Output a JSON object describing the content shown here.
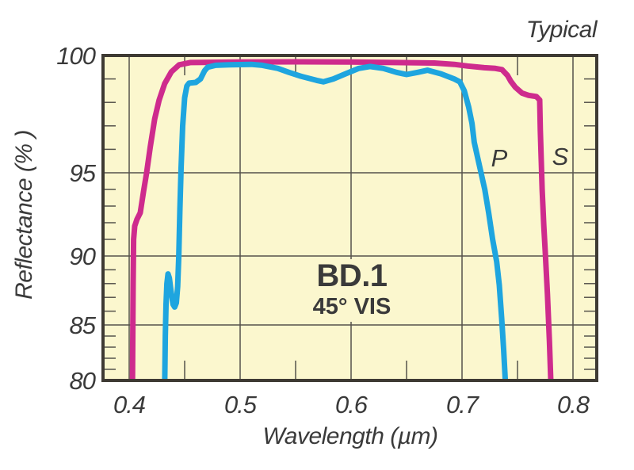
{
  "colors": {
    "page_background": "#ffffff",
    "plot_background": "#fbf7ce",
    "axis": "#3e3a33",
    "grid": "#55524b",
    "text": "#3a3a3a",
    "s_curve": "#ce2b8d",
    "p_curve": "#1ea5df"
  },
  "chart_data": {
    "type": "line",
    "title": "BD.1",
    "subtitle": "45° VIS",
    "corner_note": "Typical",
    "xlabel": "Wavelength (µm)",
    "ylabel": "Reflectance (% )",
    "xlim": [
      0.376,
      0.821
    ],
    "ylim": [
      80,
      100
    ],
    "y_scale": "nonlinear, expanded toward 100%",
    "grid": true,
    "x_tick_values": [
      0.4,
      0.5,
      0.6,
      0.7,
      0.8
    ],
    "x_tick_labels": [
      "0.4",
      "0.5",
      "0.6",
      "0.7",
      "0.8"
    ],
    "x_minor_ticks": [
      0.45,
      0.55,
      0.65,
      0.75
    ],
    "y_tick_values": [
      80,
      85,
      90,
      95,
      100
    ],
    "y_tick_labels": [
      "80",
      "85",
      "90",
      "95",
      "100"
    ],
    "y_minor_ticks": [
      81,
      82,
      83,
      84,
      86,
      87,
      88,
      89,
      91,
      92,
      93,
      94,
      96,
      97,
      98,
      99
    ],
    "series": [
      {
        "name": "S-polarization",
        "label": "S",
        "color": "#ce2b8d",
        "points": [
          [
            0.403,
            80.0
          ],
          [
            0.4033,
            84.5
          ],
          [
            0.4036,
            88.0
          ],
          [
            0.404,
            91.0
          ],
          [
            0.405,
            91.8
          ],
          [
            0.407,
            92.2
          ],
          [
            0.41,
            92.6
          ],
          [
            0.413,
            93.9
          ],
          [
            0.4157,
            95.0
          ],
          [
            0.419,
            96.1
          ],
          [
            0.423,
            97.3
          ],
          [
            0.427,
            98.1
          ],
          [
            0.432,
            98.8
          ],
          [
            0.438,
            99.3
          ],
          [
            0.445,
            99.6
          ],
          [
            0.455,
            99.7
          ],
          [
            0.5,
            99.72
          ],
          [
            0.55,
            99.73
          ],
          [
            0.6,
            99.72
          ],
          [
            0.64,
            99.7
          ],
          [
            0.675,
            99.68
          ],
          [
            0.693,
            99.62
          ],
          [
            0.705,
            99.55
          ],
          [
            0.72,
            99.48
          ],
          [
            0.73,
            99.45
          ],
          [
            0.736,
            99.4
          ],
          [
            0.741,
            99.15
          ],
          [
            0.744,
            98.9
          ],
          [
            0.748,
            98.65
          ],
          [
            0.754,
            98.4
          ],
          [
            0.76,
            98.3
          ],
          [
            0.767,
            98.25
          ],
          [
            0.77,
            98.1
          ],
          [
            0.7706,
            96.8
          ],
          [
            0.7714,
            95.5
          ],
          [
            0.7722,
            94.0
          ],
          [
            0.7737,
            91.8
          ],
          [
            0.7752,
            90.0
          ],
          [
            0.777,
            87.2
          ],
          [
            0.7788,
            83.5
          ],
          [
            0.78,
            80.0
          ]
        ]
      },
      {
        "name": "P-polarization",
        "label": "P",
        "color": "#1ea5df",
        "points": [
          [
            0.4321,
            80.0
          ],
          [
            0.4326,
            84.0
          ],
          [
            0.4332,
            86.5
          ],
          [
            0.434,
            88.0
          ],
          [
            0.435,
            88.7
          ],
          [
            0.4362,
            88.4
          ],
          [
            0.4378,
            87.4
          ],
          [
            0.4395,
            86.5
          ],
          [
            0.441,
            86.3
          ],
          [
            0.4425,
            86.6
          ],
          [
            0.4437,
            87.8
          ],
          [
            0.4447,
            90.0
          ],
          [
            0.4457,
            92.8
          ],
          [
            0.4468,
            95.2
          ],
          [
            0.4482,
            97.0
          ],
          [
            0.45,
            98.2
          ],
          [
            0.452,
            98.7
          ],
          [
            0.454,
            98.82
          ],
          [
            0.46,
            98.85
          ],
          [
            0.4643,
            99.0
          ],
          [
            0.468,
            99.35
          ],
          [
            0.4707,
            99.5
          ],
          [
            0.478,
            99.58
          ],
          [
            0.49,
            99.6
          ],
          [
            0.51,
            99.62
          ],
          [
            0.52,
            99.58
          ],
          [
            0.534,
            99.45
          ],
          [
            0.544,
            99.28
          ],
          [
            0.555,
            99.11
          ],
          [
            0.569,
            98.94
          ],
          [
            0.575,
            98.88
          ],
          [
            0.584,
            99.0
          ],
          [
            0.595,
            99.22
          ],
          [
            0.607,
            99.45
          ],
          [
            0.617,
            99.53
          ],
          [
            0.629,
            99.45
          ],
          [
            0.641,
            99.28
          ],
          [
            0.65,
            99.19
          ],
          [
            0.66,
            99.28
          ],
          [
            0.669,
            99.37
          ],
          [
            0.681,
            99.22
          ],
          [
            0.693,
            99.0
          ],
          [
            0.698,
            98.88
          ],
          [
            0.702,
            98.5
          ],
          [
            0.706,
            97.8
          ],
          [
            0.709,
            97.1
          ],
          [
            0.711,
            96.3
          ],
          [
            0.7157,
            95.3
          ],
          [
            0.7205,
            94.0
          ],
          [
            0.724,
            92.6
          ],
          [
            0.7276,
            91.0
          ],
          [
            0.7312,
            89.6
          ],
          [
            0.7336,
            87.9
          ],
          [
            0.7357,
            85.5
          ],
          [
            0.7375,
            82.8
          ],
          [
            0.739,
            80.0
          ]
        ]
      }
    ]
  }
}
